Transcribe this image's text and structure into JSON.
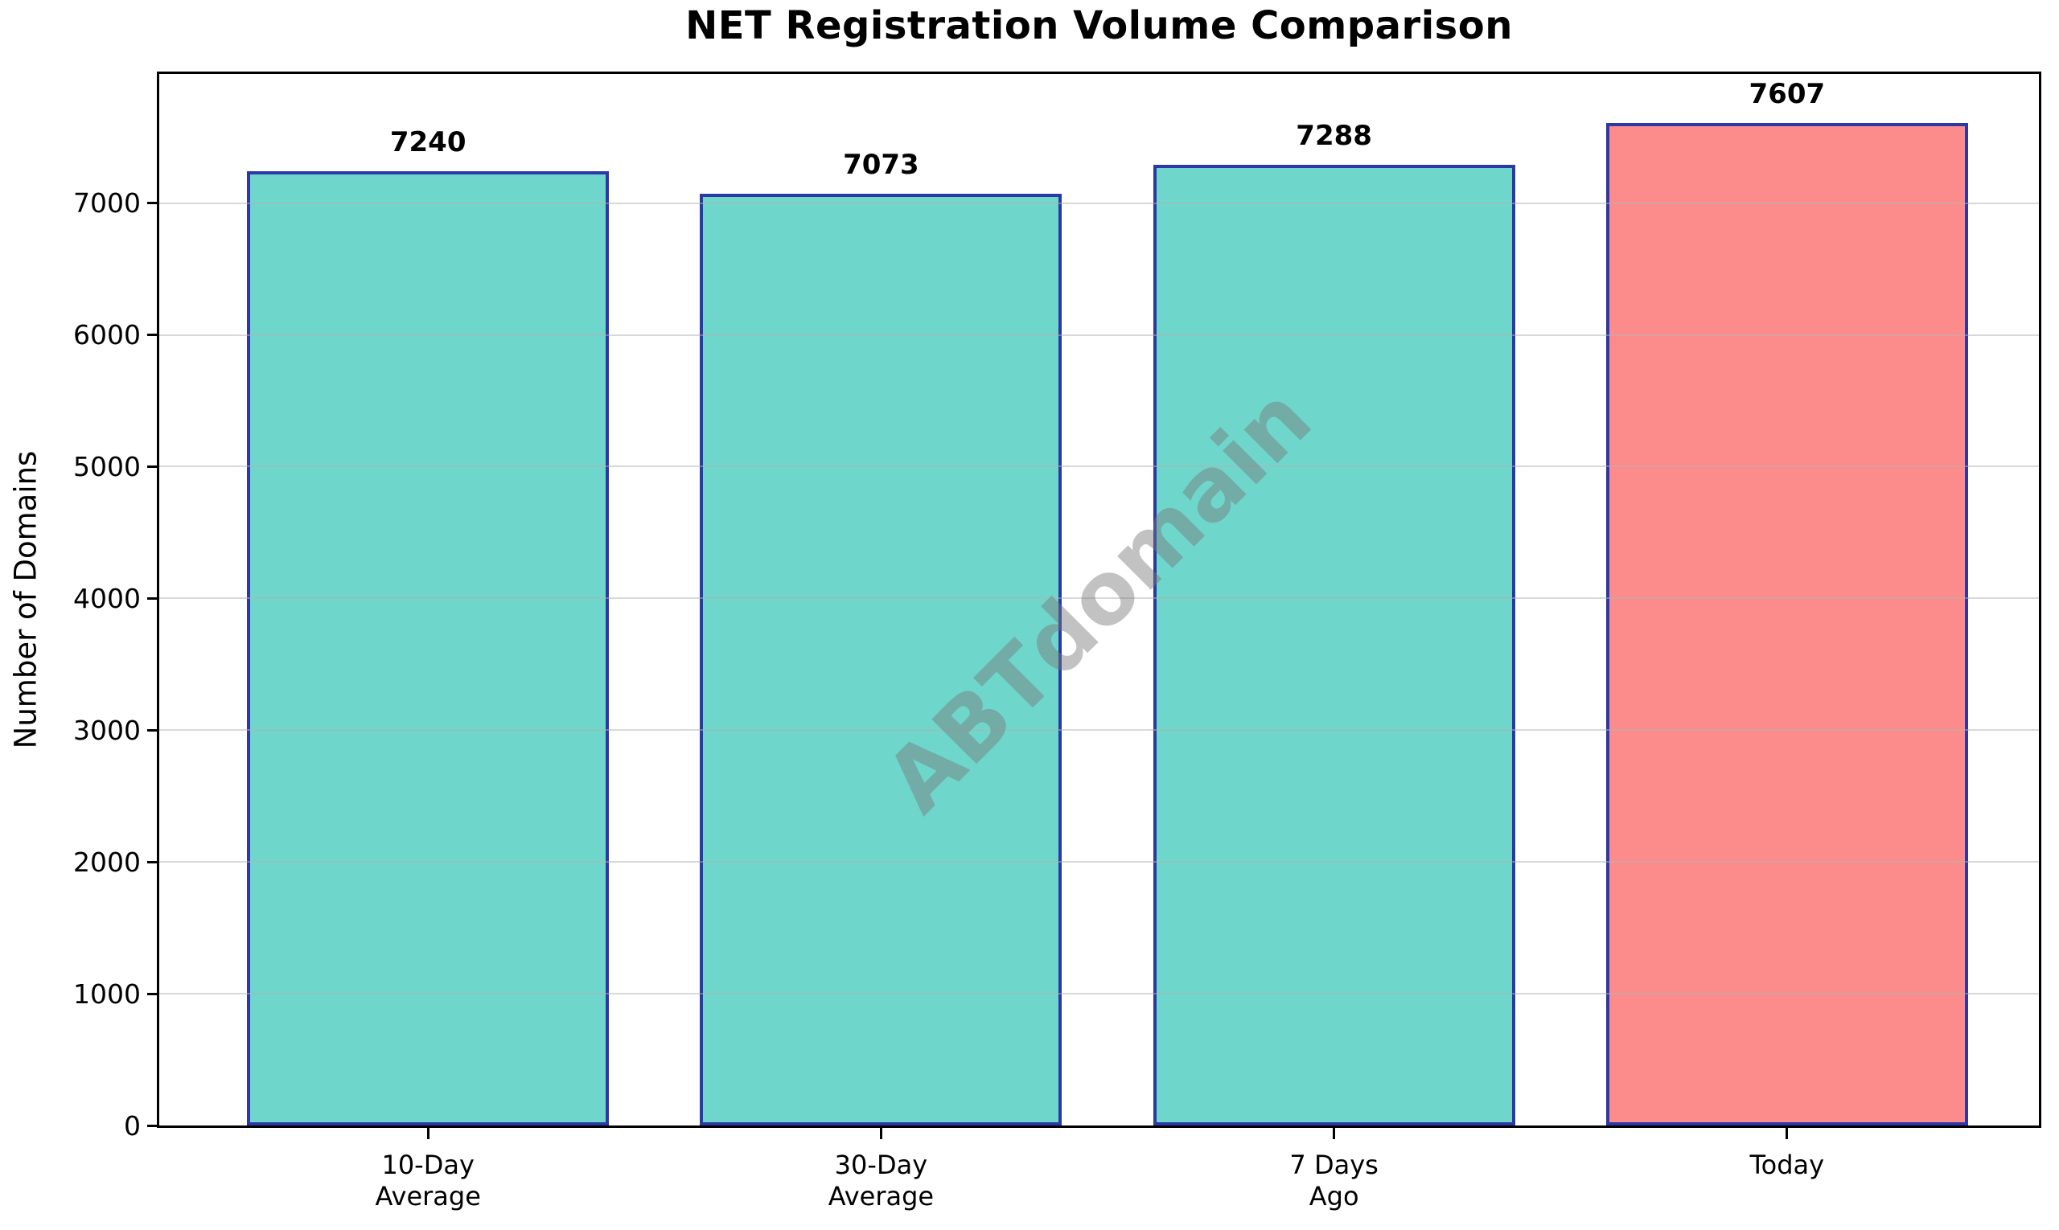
{
  "title": "NET Registration Volume Comparison",
  "watermark": "ABTdomain",
  "colors": {
    "bar_fill_normal": "#6fd6cc",
    "bar_fill_highlight": "#fc8c8c",
    "bar_edge": "#2b38a6",
    "gridline": "rgba(178,178,178,0.5)",
    "spine": "#000000"
  },
  "chart_data": {
    "type": "bar",
    "title": "NET Registration Volume Comparison",
    "xlabel": "",
    "ylabel": "Number of Domains",
    "categories": [
      "10-Day\nAverage",
      "30-Day\nAverage",
      "7 Days\nAgo",
      "Today"
    ],
    "values": [
      7240,
      7073,
      7288,
      7607
    ],
    "value_labels": [
      "7240",
      "7073",
      "7288",
      "7607"
    ],
    "bar_colors": [
      "#6fd6cc",
      "#6fd6cc",
      "#6fd6cc",
      "#fc8c8c"
    ],
    "bar_edge_color": "#2b38a6",
    "ylim": [
      0,
      7980
    ],
    "yticks": [
      0,
      1000,
      2000,
      3000,
      4000,
      5000,
      6000,
      7000
    ],
    "grid": "horizontal",
    "legend": "none",
    "watermark_text": "ABTdomain"
  }
}
